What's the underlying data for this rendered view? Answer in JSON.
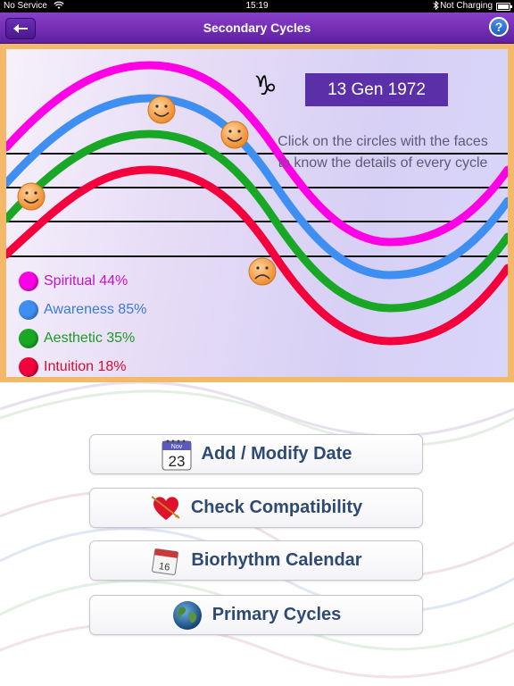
{
  "status_bar": {
    "carrier": "No Service",
    "time": "15:19",
    "battery_text": "Not Charging"
  },
  "nav": {
    "title": "Secondary Cycles",
    "help_label": "?"
  },
  "chart": {
    "zodiac_symbol": "♑",
    "date": "13 Gen 1972",
    "hint": "Click on the circles with the faces to know the details of every cycle",
    "legend": [
      {
        "label": "Spiritual 44%",
        "color": "#ff00e6",
        "text_color": "#c512c8"
      },
      {
        "label": "Awareness 85%",
        "color": "#3f8ff2",
        "text_color": "#3a7bd6"
      },
      {
        "label": "Aesthetic 35%",
        "color": "#19a826",
        "text_color": "#1b9a24"
      },
      {
        "label": "Intuition 18%",
        "color": "#f4003c",
        "text_color": "#d01030"
      }
    ]
  },
  "menu": {
    "add_modify_date": "Add / Modify Date",
    "check_compatibility": "Check Compatibility",
    "biorhythm_calendar": "Biorhythm Calendar",
    "primary_cycles": "Primary Cycles",
    "calendar_icon_month": "Nov",
    "calendar_icon_day": "23",
    "calendar2_icon_day": "16"
  },
  "colors": {
    "nav_purple": "#6a2db4",
    "panel_orange": "#f3b969",
    "date_box": "#5a2fa7",
    "button_text": "#2d4a73"
  }
}
